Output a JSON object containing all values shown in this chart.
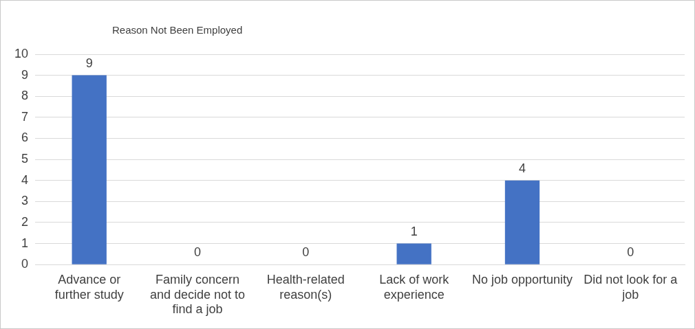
{
  "chart_data": {
    "type": "bar",
    "title": "Reason Not Been Employed",
    "categories": [
      "Advance or further study",
      "Family concern and decide not to find a job",
      "Health-related reason(s)",
      "Lack of work experience",
      "No job opportunity",
      "Did not look for a job"
    ],
    "values": [
      9,
      0,
      0,
      1,
      4,
      0
    ],
    "color": "#4472c4",
    "ylim": [
      0,
      10
    ],
    "yticks": [
      0,
      1,
      2,
      3,
      4,
      5,
      6,
      7,
      8,
      9,
      10
    ],
    "grid": "y",
    "data_labels": true
  }
}
